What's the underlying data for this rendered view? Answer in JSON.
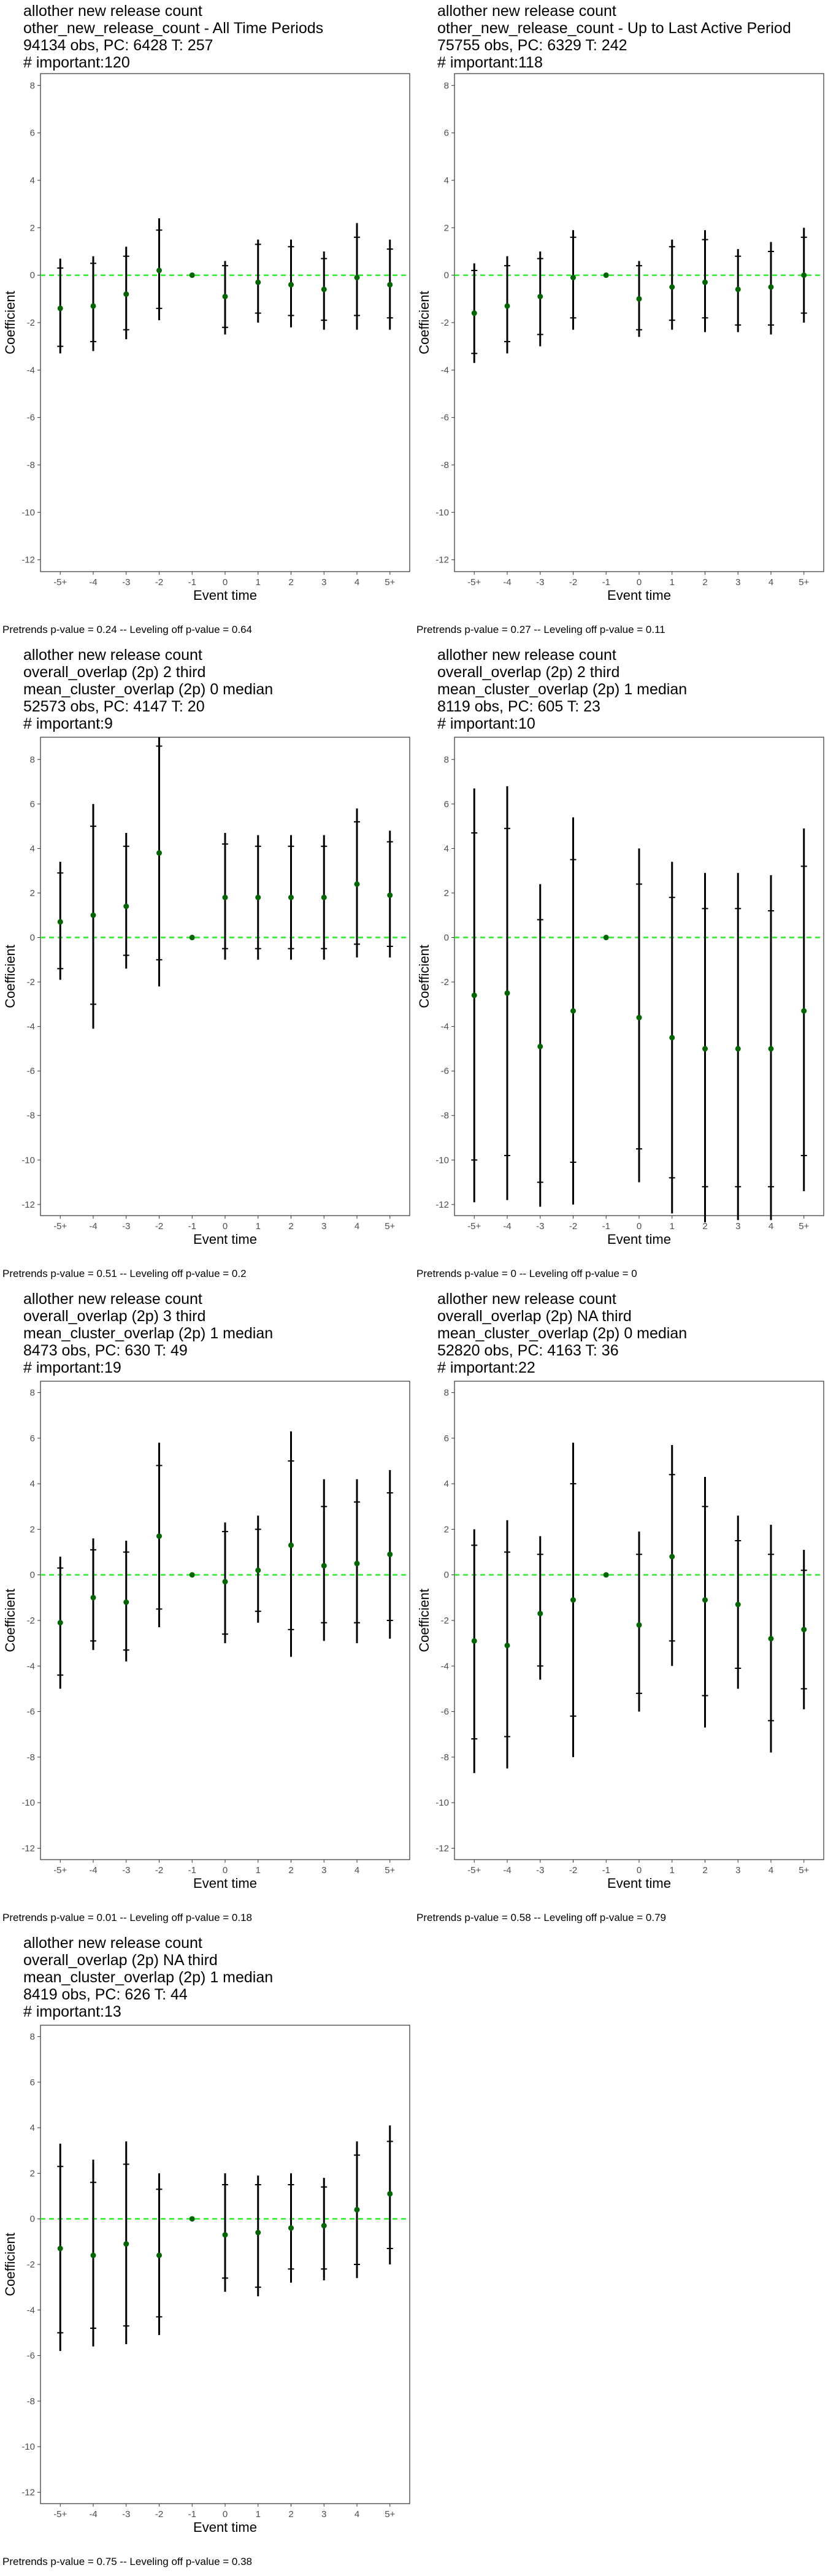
{
  "colors": {
    "point": "#006400",
    "zero_line": "#22ee22",
    "bar": "#000000",
    "frame": "#333333",
    "tick_text": "#4d4d4d"
  },
  "chart_data": [
    {
      "type": "scatter",
      "title_lines": [
        "allother new release count",
        "other_new_release_count - All Time Periods",
        "94134 obs, PC: 6428 T: 257",
        "# important:120"
      ],
      "xlabel": "Event time",
      "ylabel": "Coefficient",
      "categories": [
        "-5+",
        "-4",
        "-3",
        "-2",
        "-1",
        "0",
        "1",
        "2",
        "3",
        "4",
        "5+"
      ],
      "yticks": [
        8,
        6,
        4,
        2,
        0,
        -2,
        -4,
        -6,
        -8,
        -10,
        -12
      ],
      "ylim": [
        -12.5,
        8.5
      ],
      "footnote": "Pretrends p-value = 0.24 -- Leveling off p-value = 0.64",
      "values": [
        -1.4,
        -1.3,
        -0.8,
        0.2,
        0,
        -0.9,
        -0.3,
        -0.4,
        -0.6,
        -0.1,
        -0.4
      ],
      "ci90": [
        [
          -3.0,
          0.3
        ],
        [
          -2.8,
          0.5
        ],
        [
          -2.3,
          0.8
        ],
        [
          -1.4,
          1.9
        ],
        [
          0,
          0
        ],
        [
          -2.2,
          0.4
        ],
        [
          -1.6,
          1.3
        ],
        [
          -1.7,
          1.2
        ],
        [
          -1.9,
          0.7
        ],
        [
          -1.7,
          1.6
        ],
        [
          -1.8,
          1.1
        ]
      ],
      "ci95": [
        [
          -3.3,
          0.7
        ],
        [
          -3.2,
          0.8
        ],
        [
          -2.7,
          1.2
        ],
        [
          -1.9,
          2.4
        ],
        [
          0,
          0
        ],
        [
          -2.5,
          0.6
        ],
        [
          -2.0,
          1.5
        ],
        [
          -2.2,
          1.5
        ],
        [
          -2.3,
          1.0
        ],
        [
          -2.3,
          2.2
        ],
        [
          -2.3,
          1.5
        ]
      ]
    },
    {
      "type": "scatter",
      "title_lines": [
        "allother new release count",
        "other_new_release_count - Up to Last Active Period",
        "75755 obs, PC: 6329 T: 242",
        "# important:118"
      ],
      "xlabel": "Event time",
      "ylabel": "Coefficient",
      "categories": [
        "-5+",
        "-4",
        "-3",
        "-2",
        "-1",
        "0",
        "1",
        "2",
        "3",
        "4",
        "5+"
      ],
      "yticks": [
        8,
        6,
        4,
        2,
        0,
        -2,
        -4,
        -6,
        -8,
        -10,
        -12
      ],
      "ylim": [
        -12.5,
        8.5
      ],
      "footnote": "Pretrends p-value = 0.27 -- Leveling off p-value = 0.11",
      "values": [
        -1.6,
        -1.3,
        -0.9,
        -0.1,
        0,
        -1.0,
        -0.5,
        -0.3,
        -0.6,
        -0.5,
        0
      ],
      "ci90": [
        [
          -3.3,
          0.2
        ],
        [
          -2.8,
          0.4
        ],
        [
          -2.5,
          0.7
        ],
        [
          -1.8,
          1.6
        ],
        [
          0,
          0
        ],
        [
          -2.3,
          0.4
        ],
        [
          -1.9,
          1.2
        ],
        [
          -1.8,
          1.5
        ],
        [
          -2.1,
          0.8
        ],
        [
          -2.1,
          1.0
        ],
        [
          -1.6,
          1.6
        ]
      ],
      "ci95": [
        [
          -3.7,
          0.5
        ],
        [
          -3.3,
          0.8
        ],
        [
          -3.0,
          1.0
        ],
        [
          -2.3,
          1.9
        ],
        [
          0,
          0
        ],
        [
          -2.6,
          0.6
        ],
        [
          -2.3,
          1.5
        ],
        [
          -2.4,
          1.9
        ],
        [
          -2.4,
          1.1
        ],
        [
          -2.5,
          1.4
        ],
        [
          -2.0,
          2.0
        ]
      ]
    },
    {
      "type": "scatter",
      "title_lines": [
        "allother new release count",
        "overall_overlap (2p) 2 third",
        "mean_cluster_overlap (2p) 0 median",
        "52573 obs, PC: 4147 T: 20",
        "# important:9"
      ],
      "xlabel": "Event time",
      "ylabel": "Coefficient",
      "categories": [
        "-5+",
        "-4",
        "-3",
        "-2",
        "-1",
        "0",
        "1",
        "2",
        "3",
        "4",
        "5+"
      ],
      "yticks": [
        8,
        6,
        4,
        2,
        0,
        -2,
        -4,
        -6,
        -8,
        -10,
        -12
      ],
      "ylim": [
        -12.5,
        9.0
      ],
      "footnote": "Pretrends p-value = 0.51 -- Leveling off p-value = 0.2",
      "values": [
        0.7,
        1.0,
        1.4,
        3.8,
        0,
        1.8,
        1.8,
        1.8,
        1.8,
        2.4,
        1.9
      ],
      "ci90": [
        [
          -1.4,
          2.9
        ],
        [
          -3.0,
          5.0
        ],
        [
          -0.8,
          4.1
        ],
        [
          -1.0,
          8.6
        ],
        [
          0,
          0
        ],
        [
          -0.5,
          4.2
        ],
        [
          -0.5,
          4.1
        ],
        [
          -0.5,
          4.1
        ],
        [
          -0.5,
          4.1
        ],
        [
          -0.3,
          5.2
        ],
        [
          -0.4,
          4.3
        ]
      ],
      "ci95": [
        [
          -1.9,
          3.4
        ],
        [
          -4.1,
          6.0
        ],
        [
          -1.4,
          4.7
        ],
        [
          -2.2,
          9.0
        ],
        [
          0,
          0
        ],
        [
          -1.0,
          4.7
        ],
        [
          -1.0,
          4.6
        ],
        [
          -1.0,
          4.6
        ],
        [
          -1.0,
          4.6
        ],
        [
          -0.9,
          5.8
        ],
        [
          -0.9,
          4.8
        ]
      ]
    },
    {
      "type": "scatter",
      "title_lines": [
        "allother new release count",
        "overall_overlap (2p) 2 third",
        "mean_cluster_overlap (2p) 1 median",
        "8119 obs, PC: 605 T: 23",
        "# important:10"
      ],
      "xlabel": "Event time",
      "ylabel": "Coefficient",
      "categories": [
        "-5+",
        "-4",
        "-3",
        "-2",
        "-1",
        "0",
        "1",
        "2",
        "3",
        "4",
        "5+"
      ],
      "yticks": [
        8,
        6,
        4,
        2,
        0,
        -2,
        -4,
        -6,
        -8,
        -10,
        -12
      ],
      "ylim": [
        -12.5,
        9.0
      ],
      "footnote": "Pretrends p-value = 0 -- Leveling off p-value = 0",
      "values": [
        -2.6,
        -2.5,
        -4.9,
        -3.3,
        0,
        -3.6,
        -4.5,
        -5.0,
        -5.0,
        -5.0,
        -3.3
      ],
      "ci90": [
        [
          -10.0,
          4.7
        ],
        [
          -9.8,
          4.9
        ],
        [
          -11.0,
          0.8
        ],
        [
          -10.1,
          3.5
        ],
        [
          0,
          0
        ],
        [
          -9.5,
          2.4
        ],
        [
          -10.8,
          1.8
        ],
        [
          -11.2,
          1.3
        ],
        [
          -11.2,
          1.3
        ],
        [
          -11.2,
          1.2
        ],
        [
          -9.8,
          3.2
        ]
      ],
      "ci95": [
        [
          -11.9,
          6.7
        ],
        [
          -11.8,
          6.8
        ],
        [
          -12.1,
          2.4
        ],
        [
          -12.0,
          5.4
        ],
        [
          0,
          0
        ],
        [
          -11.0,
          4.0
        ],
        [
          -12.4,
          3.4
        ],
        [
          -12.8,
          2.9
        ],
        [
          -12.7,
          2.9
        ],
        [
          -12.7,
          2.8
        ],
        [
          -11.4,
          4.9
        ]
      ]
    },
    {
      "type": "scatter",
      "title_lines": [
        "allother new release count",
        "overall_overlap (2p) 3 third",
        "mean_cluster_overlap (2p) 1 median",
        "8473 obs, PC: 630 T: 49",
        "# important:19"
      ],
      "xlabel": "Event time",
      "ylabel": "Coefficient",
      "categories": [
        "-5+",
        "-4",
        "-3",
        "-2",
        "-1",
        "0",
        "1",
        "2",
        "3",
        "4",
        "5+"
      ],
      "yticks": [
        8,
        6,
        4,
        2,
        0,
        -2,
        -4,
        -6,
        -8,
        -10,
        -12
      ],
      "ylim": [
        -12.5,
        8.5
      ],
      "footnote": "Pretrends p-value = 0.01 -- Leveling off p-value = 0.18",
      "values": [
        -2.1,
        -1.0,
        -1.2,
        1.7,
        0,
        -0.3,
        0.2,
        1.3,
        0.4,
        0.5,
        0.9
      ],
      "ci90": [
        [
          -4.4,
          0.3
        ],
        [
          -2.9,
          1.1
        ],
        [
          -3.3,
          1.0
        ],
        [
          -1.5,
          4.8
        ],
        [
          0,
          0
        ],
        [
          -2.6,
          1.9
        ],
        [
          -1.6,
          2.0
        ],
        [
          -2.4,
          5.0
        ],
        [
          -2.1,
          3.0
        ],
        [
          -2.1,
          3.2
        ],
        [
          -2.0,
          3.6
        ]
      ],
      "ci95": [
        [
          -5.0,
          0.8
        ],
        [
          -3.3,
          1.6
        ],
        [
          -3.8,
          1.5
        ],
        [
          -2.3,
          5.8
        ],
        [
          0,
          0
        ],
        [
          -3.0,
          2.3
        ],
        [
          -2.1,
          2.6
        ],
        [
          -3.6,
          6.3
        ],
        [
          -2.9,
          4.2
        ],
        [
          -3.0,
          4.2
        ],
        [
          -2.8,
          4.6
        ]
      ]
    },
    {
      "type": "scatter",
      "title_lines": [
        "allother new release count",
        "overall_overlap (2p) NA third",
        "mean_cluster_overlap (2p) 0 median",
        "52820 obs, PC: 4163 T: 36",
        "# important:22"
      ],
      "xlabel": "Event time",
      "ylabel": "Coefficient",
      "categories": [
        "-5+",
        "-4",
        "-3",
        "-2",
        "-1",
        "0",
        "1",
        "2",
        "3",
        "4",
        "5+"
      ],
      "yticks": [
        8,
        6,
        4,
        2,
        0,
        -2,
        -4,
        -6,
        -8,
        -10,
        -12
      ],
      "ylim": [
        -12.5,
        8.5
      ],
      "footnote": "Pretrends p-value = 0.58 -- Leveling off p-value = 0.79",
      "values": [
        -2.9,
        -3.1,
        -1.7,
        -1.1,
        0,
        -2.2,
        0.8,
        -1.1,
        -1.3,
        -2.8,
        -2.4
      ],
      "ci90": [
        [
          -7.2,
          1.3
        ],
        [
          -7.1,
          1.0
        ],
        [
          -4.0,
          0.9
        ],
        [
          -6.2,
          4.0
        ],
        [
          0,
          0
        ],
        [
          -5.2,
          0.9
        ],
        [
          -2.9,
          4.4
        ],
        [
          -5.3,
          3.0
        ],
        [
          -4.1,
          1.5
        ],
        [
          -6.4,
          0.9
        ],
        [
          -5.0,
          0.2
        ]
      ],
      "ci95": [
        [
          -8.7,
          2.0
        ],
        [
          -8.5,
          2.4
        ],
        [
          -4.6,
          1.7
        ],
        [
          -8.0,
          5.8
        ],
        [
          0,
          0
        ],
        [
          -6.0,
          1.9
        ],
        [
          -4.0,
          5.7
        ],
        [
          -6.7,
          4.3
        ],
        [
          -5.0,
          2.6
        ],
        [
          -7.8,
          2.2
        ],
        [
          -5.9,
          1.1
        ]
      ]
    },
    {
      "type": "scatter",
      "title_lines": [
        "allother new release count",
        "overall_overlap (2p) NA third",
        "mean_cluster_overlap (2p) 1 median",
        "8419 obs, PC: 626 T: 44",
        "# important:13"
      ],
      "xlabel": "Event time",
      "ylabel": "Coefficient",
      "categories": [
        "-5+",
        "-4",
        "-3",
        "-2",
        "-1",
        "0",
        "1",
        "2",
        "3",
        "4",
        "5+"
      ],
      "yticks": [
        8,
        6,
        4,
        2,
        0,
        -2,
        -4,
        -6,
        -8,
        -10,
        -12
      ],
      "ylim": [
        -12.5,
        8.5
      ],
      "footnote": "Pretrends p-value = 0.75 -- Leveling off p-value = 0.38",
      "values": [
        -1.3,
        -1.6,
        -1.1,
        -1.6,
        0,
        -0.7,
        -0.6,
        -0.4,
        -0.3,
        0.4,
        1.1
      ],
      "ci90": [
        [
          -5.0,
          2.3
        ],
        [
          -4.8,
          1.6
        ],
        [
          -4.7,
          2.4
        ],
        [
          -4.3,
          1.3
        ],
        [
          0,
          0
        ],
        [
          -2.6,
          1.5
        ],
        [
          -3.0,
          1.5
        ],
        [
          -2.2,
          1.5
        ],
        [
          -2.2,
          1.4
        ],
        [
          -2.0,
          2.8
        ],
        [
          -1.3,
          3.4
        ]
      ],
      "ci95": [
        [
          -5.8,
          3.3
        ],
        [
          -5.6,
          2.6
        ],
        [
          -5.5,
          3.4
        ],
        [
          -5.1,
          2.0
        ],
        [
          0,
          0
        ],
        [
          -3.2,
          2.0
        ],
        [
          -3.4,
          1.9
        ],
        [
          -2.8,
          2.0
        ],
        [
          -2.7,
          1.8
        ],
        [
          -2.6,
          3.4
        ],
        [
          -2.0,
          4.1
        ]
      ]
    }
  ]
}
